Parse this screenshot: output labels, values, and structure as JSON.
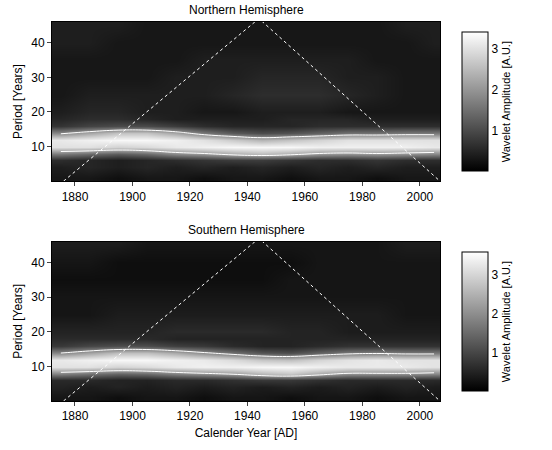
{
  "chart_data": [
    {
      "type": "heatmap",
      "title": "Northern Hemisphere",
      "x": [
        1875,
        1885,
        1895,
        1905,
        1915,
        1925,
        1935,
        1945,
        1955,
        1965,
        1975,
        1985,
        1995,
        2005
      ],
      "y": [
        1,
        4,
        6,
        8,
        10,
        12,
        14,
        16,
        18,
        20,
        25,
        30,
        35,
        40,
        45
      ],
      "cells": [
        [
          0.3,
          0.3,
          0.2,
          0.3,
          0.3,
          0.2,
          0.3,
          0.3,
          0.2,
          0.3,
          0.3,
          0.2,
          0.3,
          0.3
        ],
        [
          0.4,
          0.5,
          0.4,
          0.5,
          0.4,
          0.5,
          0.4,
          0.5,
          0.4,
          0.5,
          0.4,
          0.5,
          0.4,
          0.4
        ],
        [
          0.6,
          0.5,
          0.4,
          0.5,
          0.6,
          0.7,
          0.8,
          0.8,
          0.7,
          0.6,
          0.6,
          0.7,
          0.6,
          0.6
        ],
        [
          1.6,
          1.4,
          1.2,
          1.4,
          1.8,
          2.0,
          2.3,
          2.5,
          2.3,
          2.0,
          1.9,
          2.0,
          1.9,
          1.8
        ],
        [
          3.0,
          3.0,
          2.8,
          2.9,
          3.1,
          3.2,
          3.3,
          3.3,
          3.3,
          3.2,
          3.2,
          3.2,
          3.2,
          3.1
        ],
        [
          3.1,
          3.2,
          3.3,
          3.3,
          3.2,
          3.0,
          2.7,
          2.4,
          2.6,
          2.8,
          3.0,
          3.0,
          3.0,
          3.0
        ],
        [
          1.8,
          2.2,
          2.6,
          2.6,
          2.2,
          1.6,
          1.2,
          1.0,
          1.1,
          1.3,
          1.5,
          1.5,
          1.6,
          1.6
        ],
        [
          0.7,
          0.9,
          1.0,
          1.0,
          0.8,
          0.6,
          0.5,
          0.5,
          0.5,
          0.6,
          0.6,
          0.6,
          0.6,
          0.6
        ],
        [
          0.5,
          0.6,
          0.6,
          0.5,
          0.4,
          0.4,
          0.4,
          0.4,
          0.5,
          0.5,
          0.5,
          0.4,
          0.4,
          0.4
        ],
        [
          0.4,
          0.5,
          0.5,
          0.4,
          0.4,
          0.3,
          0.3,
          0.4,
          0.4,
          0.4,
          0.3,
          0.3,
          0.3,
          0.3
        ],
        [
          0.3,
          0.4,
          0.4,
          0.4,
          0.4,
          0.4,
          0.5,
          0.6,
          0.6,
          0.6,
          0.5,
          0.4,
          0.3,
          0.3
        ],
        [
          0.3,
          0.3,
          0.3,
          0.3,
          0.4,
          0.4,
          0.4,
          0.5,
          0.5,
          0.5,
          0.4,
          0.4,
          0.3,
          0.3
        ],
        [
          0.3,
          0.3,
          0.3,
          0.3,
          0.3,
          0.4,
          0.4,
          0.4,
          0.4,
          0.4,
          0.4,
          0.3,
          0.3,
          0.3
        ],
        [
          0.4,
          0.4,
          0.3,
          0.3,
          0.3,
          0.3,
          0.3,
          0.3,
          0.3,
          0.3,
          0.3,
          0.3,
          0.3,
          0.4
        ],
        [
          0.4,
          0.4,
          0.4,
          0.3,
          0.3,
          0.3,
          0.3,
          0.3,
          0.3,
          0.3,
          0.3,
          0.3,
          0.4,
          0.4
        ]
      ],
      "colorbar_label": "Wavelet Amplitude [A.U.]",
      "zlim": [
        0,
        3.4
      ],
      "zticks": [
        1,
        2,
        3
      ],
      "contour_level": 2,
      "cone_of_influence": {
        "x": [
          1876,
          1944,
          2007
        ],
        "y": [
          0,
          47,
          0
        ]
      },
      "y_label": "Period [Years]",
      "xlim": [
        1872,
        2007
      ],
      "xticks": [
        1880,
        1900,
        1920,
        1940,
        1960,
        1980,
        2000
      ],
      "ylim": [
        0,
        46
      ],
      "yticks": [
        10,
        20,
        30,
        40
      ]
    },
    {
      "type": "heatmap",
      "title": "Southern Hemisphere",
      "x": [
        1875,
        1885,
        1895,
        1905,
        1915,
        1925,
        1935,
        1945,
        1955,
        1965,
        1975,
        1985,
        1995,
        2005
      ],
      "y": [
        1,
        4,
        6,
        8,
        10,
        12,
        14,
        16,
        18,
        20,
        25,
        30,
        35,
        40,
        45
      ],
      "cells": [
        [
          0.3,
          0.3,
          0.2,
          0.3,
          0.3,
          0.2,
          0.3,
          0.3,
          0.2,
          0.3,
          0.3,
          0.2,
          0.3,
          0.3
        ],
        [
          0.5,
          0.4,
          0.5,
          0.4,
          0.5,
          0.4,
          0.5,
          0.4,
          0.5,
          0.4,
          0.5,
          0.4,
          0.5,
          0.4
        ],
        [
          0.6,
          0.6,
          0.5,
          0.5,
          0.6,
          0.6,
          0.7,
          0.8,
          0.8,
          0.7,
          0.6,
          0.6,
          0.6,
          0.6
        ],
        [
          1.8,
          1.6,
          1.4,
          1.5,
          1.8,
          2.0,
          2.2,
          2.6,
          2.8,
          2.4,
          2.0,
          2.0,
          2.0,
          1.9
        ],
        [
          3.2,
          3.2,
          3.0,
          3.1,
          3.3,
          3.4,
          3.4,
          3.5,
          3.5,
          3.4,
          3.3,
          3.3,
          3.3,
          3.2
        ],
        [
          3.3,
          3.4,
          3.5,
          3.5,
          3.4,
          3.3,
          3.1,
          2.8,
          2.7,
          3.0,
          3.2,
          3.3,
          3.2,
          3.2
        ],
        [
          1.9,
          2.3,
          2.7,
          2.7,
          2.4,
          2.0,
          1.6,
          1.2,
          1.1,
          1.4,
          1.7,
          1.8,
          1.7,
          1.7
        ],
        [
          0.8,
          1.0,
          1.1,
          1.1,
          0.9,
          0.8,
          0.6,
          0.5,
          0.5,
          0.6,
          0.7,
          0.7,
          0.7,
          0.7
        ],
        [
          0.6,
          0.6,
          0.6,
          0.6,
          0.5,
          0.5,
          0.5,
          0.5,
          0.5,
          0.5,
          0.5,
          0.5,
          0.5,
          0.5
        ],
        [
          0.5,
          0.5,
          0.5,
          0.5,
          0.6,
          0.6,
          0.6,
          0.6,
          0.5,
          0.5,
          0.4,
          0.4,
          0.4,
          0.4
        ],
        [
          0.3,
          0.3,
          0.4,
          0.4,
          0.4,
          0.4,
          0.4,
          0.4,
          0.4,
          0.4,
          0.4,
          0.4,
          0.3,
          0.3
        ],
        [
          0.3,
          0.3,
          0.3,
          0.3,
          0.3,
          0.3,
          0.3,
          0.3,
          0.3,
          0.3,
          0.3,
          0.3,
          0.3,
          0.3
        ],
        [
          0.2,
          0.2,
          0.2,
          0.2,
          0.2,
          0.2,
          0.2,
          0.2,
          0.3,
          0.3,
          0.3,
          0.3,
          0.3,
          0.3
        ],
        [
          0.3,
          0.3,
          0.2,
          0.2,
          0.2,
          0.2,
          0.2,
          0.2,
          0.2,
          0.3,
          0.3,
          0.3,
          0.3,
          0.3
        ],
        [
          0.4,
          0.4,
          0.4,
          0.3,
          0.3,
          0.3,
          0.3,
          0.3,
          0.3,
          0.3,
          0.3,
          0.3,
          0.4,
          0.4
        ]
      ],
      "colorbar_label": "Wavelet Amplitude [A.U.]",
      "zlim": [
        0,
        3.6
      ],
      "zticks": [
        1,
        2,
        3
      ],
      "contour_level": 2,
      "cone_of_influence": {
        "x": [
          1876,
          1944,
          2007
        ],
        "y": [
          0,
          47,
          0
        ]
      },
      "x_label": "Calender Year [AD]",
      "y_label": "Period [Years]",
      "xlim": [
        1872,
        2007
      ],
      "xticks": [
        1880,
        1900,
        1920,
        1940,
        1960,
        1980,
        2000
      ],
      "ylim": [
        0,
        46
      ],
      "yticks": [
        10,
        20,
        30,
        40
      ]
    }
  ]
}
